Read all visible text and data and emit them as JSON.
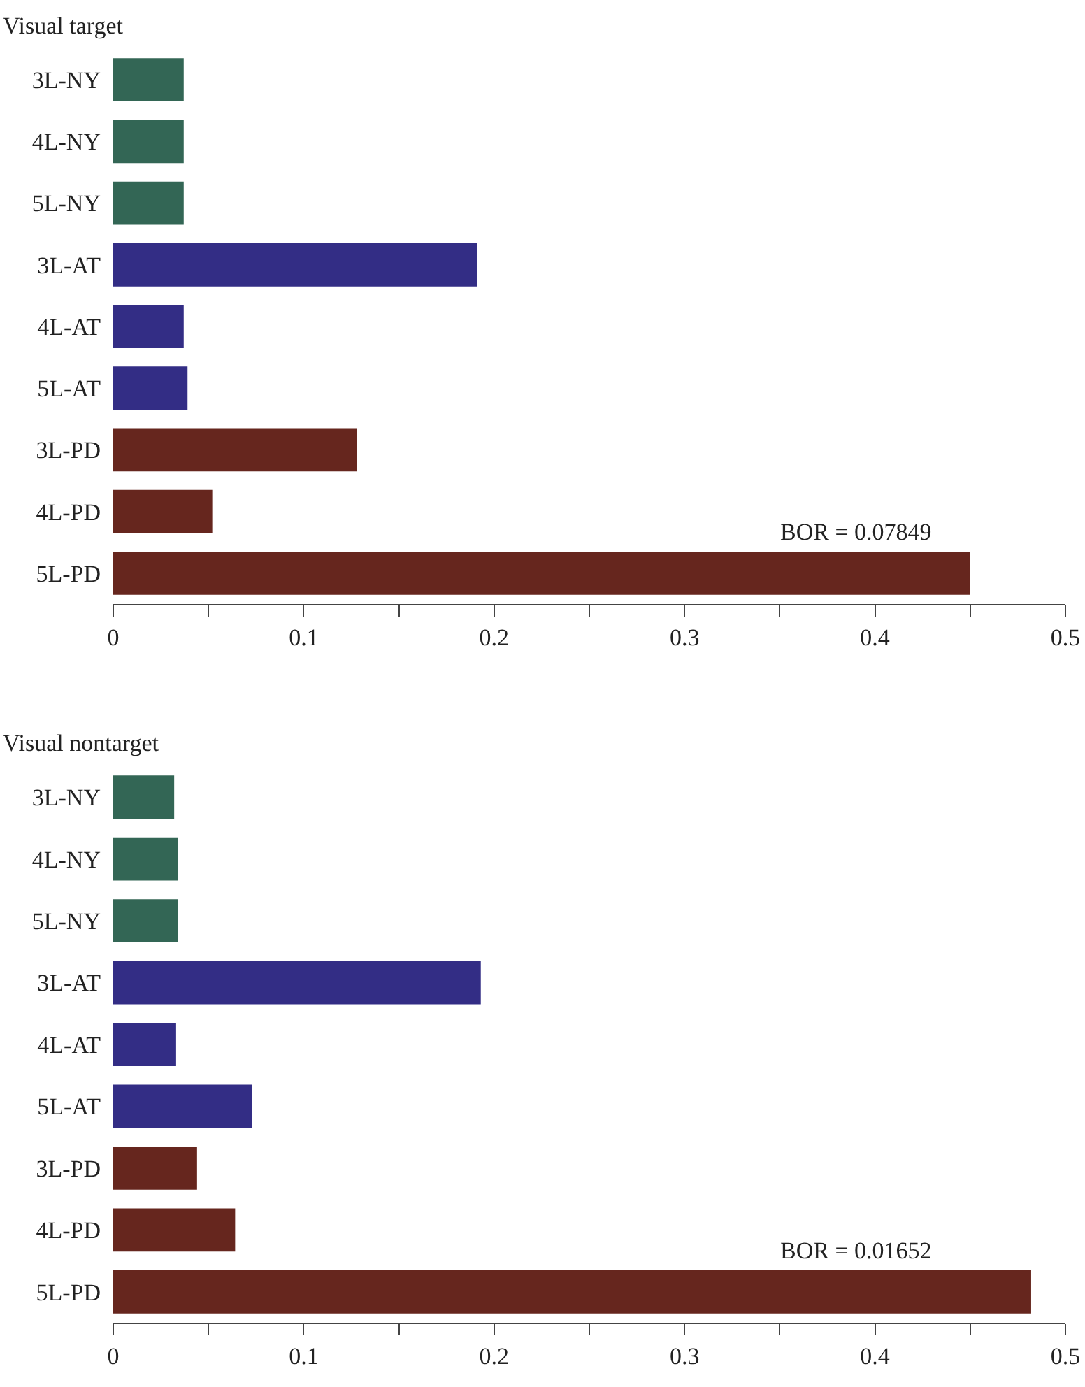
{
  "chart_data": [
    {
      "type": "bar",
      "orientation": "horizontal",
      "title": "Visual target",
      "categories": [
        "3L-NY",
        "4L-NY",
        "5L-NY",
        "3L-AT",
        "4L-AT",
        "5L-AT",
        "3L-PD",
        "4L-PD",
        "5L-PD"
      ],
      "values": [
        0.037,
        0.037,
        0.037,
        0.191,
        0.037,
        0.039,
        0.128,
        0.052,
        0.45
      ],
      "colors": [
        "#336655",
        "#336655",
        "#336655",
        "#332d85",
        "#332d85",
        "#332d85",
        "#66261e",
        "#66261e",
        "#66261e"
      ],
      "xlim": [
        0,
        0.5
      ],
      "xticks": [
        0,
        {
          "value": 0.05,
          "label": null
        },
        0.1,
        {
          "value": 0.15,
          "label": null
        },
        0.2,
        {
          "value": 0.25,
          "label": null
        },
        0.3,
        {
          "value": 0.35,
          "label": null
        },
        0.4,
        {
          "value": 0.45,
          "label": null
        },
        0.5
      ],
      "annotations": [
        "BOR = 0.07849"
      ]
    },
    {
      "type": "bar",
      "orientation": "horizontal",
      "title": "Visual nontarget",
      "categories": [
        "3L-NY",
        "4L-NY",
        "5L-NY",
        "3L-AT",
        "4L-AT",
        "5L-AT",
        "3L-PD",
        "4L-PD",
        "5L-PD"
      ],
      "values": [
        0.032,
        0.034,
        0.034,
        0.193,
        0.033,
        0.073,
        0.044,
        0.064,
        0.482
      ],
      "colors": [
        "#336655",
        "#336655",
        "#336655",
        "#332d85",
        "#332d85",
        "#332d85",
        "#66261e",
        "#66261e",
        "#66261e"
      ],
      "xlim": [
        0,
        0.5
      ],
      "xticks": [
        0,
        {
          "value": 0.05,
          "label": null
        },
        0.1,
        {
          "value": 0.15,
          "label": null
        },
        0.2,
        {
          "value": 0.25,
          "label": null
        },
        0.3,
        {
          "value": 0.35,
          "label": null
        },
        0.4,
        {
          "value": 0.45,
          "label": null
        },
        0.5
      ],
      "annotations": [
        "BOR = 0.01652"
      ]
    }
  ]
}
